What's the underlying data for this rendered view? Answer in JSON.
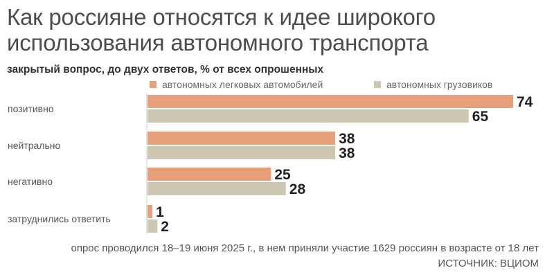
{
  "title": "Как россияне относятся к идее широкого использования автономного транспорта",
  "subtitle": "закрытый вопрос, до двух ответов, % от всех опрошенных",
  "note": "опрос проводился 18–19 июня 2025 г., в нем приняли участие 1629 россиян в возрасте от 18 лет",
  "source": "ИСТОЧНИК: ВЦИОМ",
  "colors": {
    "cars": "#e8a07b",
    "trucks": "#cdc7b2"
  },
  "chart_data": {
    "type": "bar",
    "orientation": "horizontal",
    "title": "Как россияне относятся к идее широкого использования автономного транспорта",
    "subtitle": "закрытый вопрос, до двух ответов, % от всех опрошенных",
    "categories": [
      "позитивно",
      "нейтрально",
      "негативно",
      "затруднились ответить"
    ],
    "series": [
      {
        "name": "автономных легковых автомобилей",
        "values": [
          74,
          38,
          25,
          1
        ],
        "color": "#e8a07b"
      },
      {
        "name": "автономных грузовиков",
        "values": [
          65,
          38,
          28,
          2
        ],
        "color": "#cdc7b2"
      }
    ],
    "xlim": [
      0,
      74
    ],
    "legend": "top",
    "grid": false
  }
}
